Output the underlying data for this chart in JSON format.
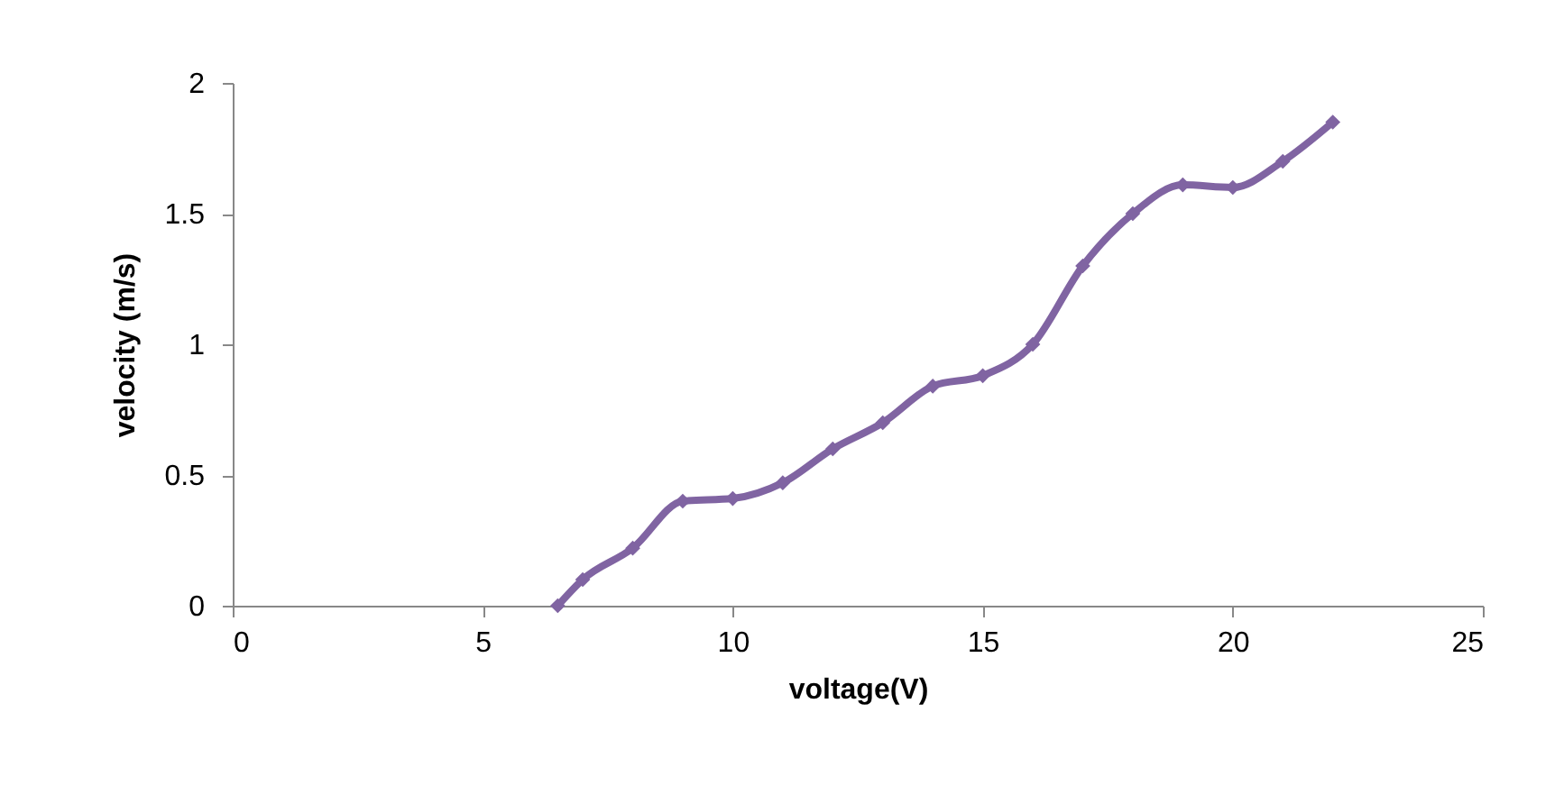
{
  "chart_data": {
    "type": "line",
    "xlabel": "voltage(V)",
    "ylabel": "velocity (m/s)",
    "x": [
      6.5,
      7,
      8,
      9,
      10,
      11,
      12,
      13,
      14,
      15,
      16,
      17,
      18,
      19,
      20,
      21,
      22
    ],
    "series": [
      {
        "color": "#8064a2",
        "values": [
          0,
          0.1,
          0.22,
          0.4,
          0.41,
          0.47,
          0.6,
          0.7,
          0.84,
          0.88,
          1.0,
          1.3,
          1.5,
          1.61,
          1.6,
          1.7,
          1.85
        ]
      }
    ],
    "xlim": [
      0,
      25
    ],
    "xticks": [
      0,
      5,
      10,
      15,
      20,
      25
    ],
    "ylim": [
      0,
      2
    ],
    "yticks": [
      0,
      0.5,
      1,
      1.5,
      2
    ],
    "grid": false,
    "marker": "diamond",
    "line_style": "solid"
  }
}
